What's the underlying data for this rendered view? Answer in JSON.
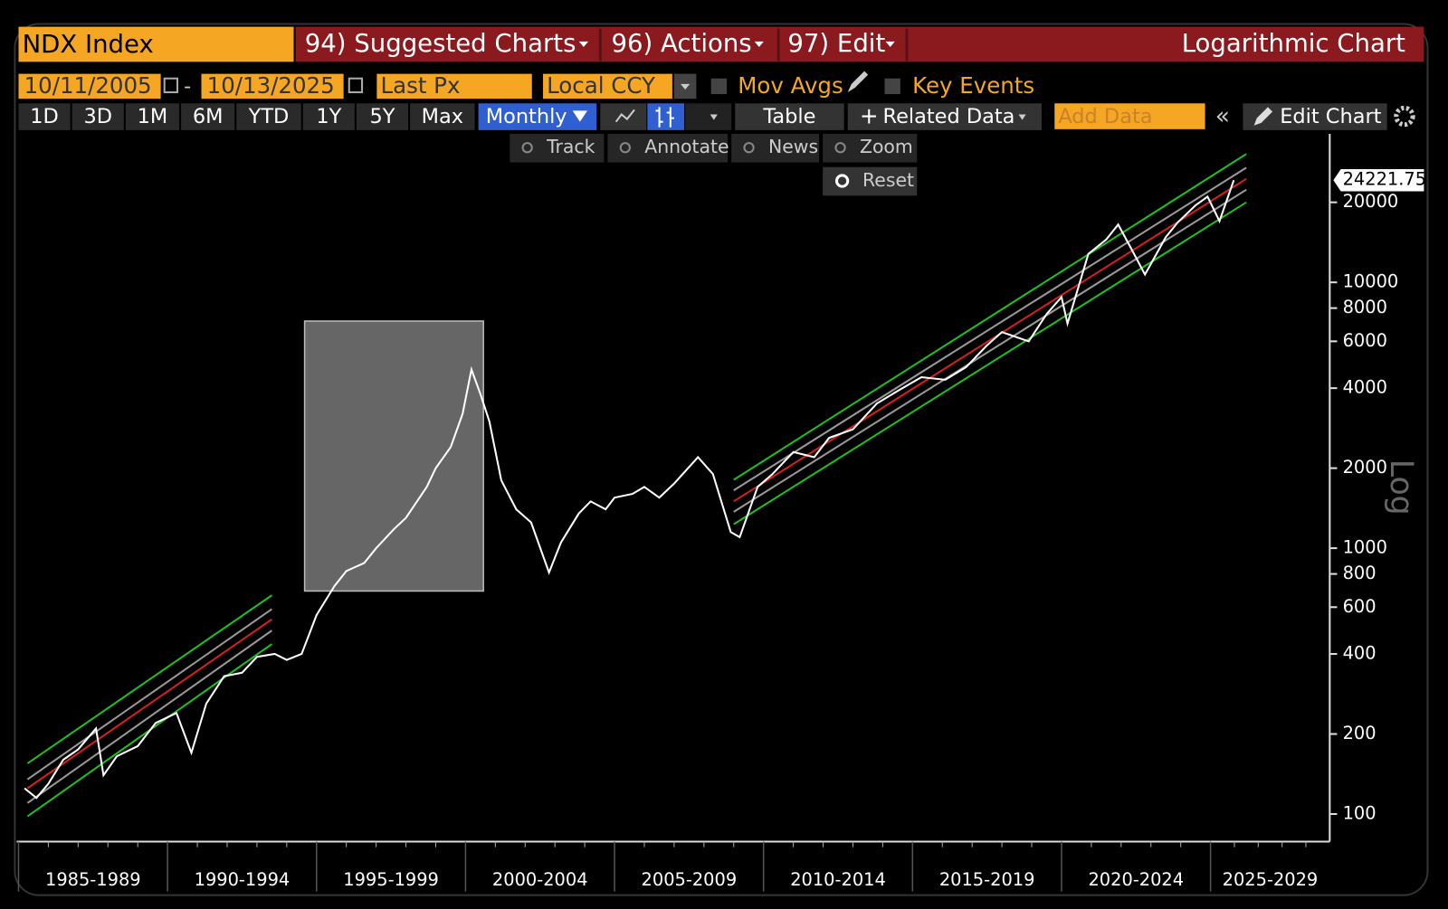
{
  "toolbar": {
    "ticker": "NDX Index",
    "menus": [
      "94) Suggested Charts",
      "96) Actions",
      "97) Edit"
    ],
    "chart_mode": "Logarithmic Chart",
    "start_date": "10/11/2005",
    "end_date": "10/13/2025",
    "field": "Last Px",
    "currency": "Local CCY",
    "mov_avgs": "Mov Avgs",
    "key_events": "Key Events",
    "ranges": [
      "1D",
      "3D",
      "1M",
      "6M",
      "YTD",
      "1Y",
      "5Y",
      "Max"
    ],
    "frequency": "Monthly",
    "table": "Table",
    "related_data": "Related Data",
    "add_data": "Add Data",
    "edit_chart": "Edit Chart",
    "tools": [
      "Track",
      "Annotate",
      "News",
      "Zoom"
    ],
    "reset": "Reset"
  },
  "chart_data": {
    "type": "line",
    "log_scale": true,
    "axis_label": "Log",
    "xlim": [
      1985,
      2029
    ],
    "xticks": [
      {
        "value": 1985,
        "label": "1985-1989"
      },
      {
        "value": 1990,
        "label": "1990-1994"
      },
      {
        "value": 1995,
        "label": "1995-1999"
      },
      {
        "value": 2000,
        "label": "2000-2004"
      },
      {
        "value": 2005,
        "label": "2005-2009"
      },
      {
        "value": 2010,
        "label": "2010-2014"
      },
      {
        "value": 2015,
        "label": "2015-2019"
      },
      {
        "value": 2020,
        "label": "2020-2024"
      },
      {
        "value": 2025,
        "label": "2025-2029"
      }
    ],
    "ylim": [
      80,
      36200
    ],
    "yticks": [
      100,
      200,
      400,
      600,
      800,
      1000,
      2000,
      4000,
      6000,
      8000,
      10000,
      20000
    ],
    "series": [
      {
        "name": "NDX Index",
        "color": "#ffffff",
        "x": [
          1985.2,
          1985.6,
          1986.0,
          1986.5,
          1987.0,
          1987.6,
          1987.85,
          1988.3,
          1989.0,
          1989.6,
          1990.3,
          1990.8,
          1991.3,
          1991.9,
          1992.5,
          1993.0,
          1993.6,
          1994.0,
          1994.5,
          1995.0,
          1995.6,
          1996.0,
          1996.6,
          1997.0,
          1997.6,
          1998.0,
          1998.7,
          1999.0,
          1999.5,
          1999.9,
          2000.2,
          2000.5,
          2000.8,
          2001.2,
          2001.7,
          2002.2,
          2002.8,
          2003.2,
          2003.8,
          2004.2,
          2004.7,
          2005.0,
          2005.6,
          2006.0,
          2006.5,
          2007.0,
          2007.8,
          2008.3,
          2008.9,
          2009.2,
          2009.8,
          2010.3,
          2011.0,
          2011.7,
          2012.2,
          2013.0,
          2013.8,
          2014.5,
          2015.3,
          2016.1,
          2016.8,
          2017.5,
          2018.0,
          2018.9,
          2019.5,
          2020.0,
          2020.2,
          2020.9,
          2021.5,
          2021.9,
          2022.4,
          2022.8,
          2023.5,
          2023.9,
          2024.5,
          2024.9,
          2025.3,
          2025.78
        ],
        "values": [
          125,
          115,
          130,
          160,
          175,
          210,
          140,
          165,
          180,
          220,
          240,
          170,
          260,
          330,
          340,
          390,
          400,
          380,
          400,
          560,
          720,
          820,
          880,
          1000,
          1180,
          1300,
          1700,
          2000,
          2400,
          3200,
          4700,
          3800,
          3000,
          1800,
          1400,
          1250,
          810,
          1050,
          1350,
          1500,
          1400,
          1550,
          1600,
          1700,
          1550,
          1750,
          2200,
          1900,
          1150,
          1100,
          1700,
          1900,
          2300,
          2200,
          2600,
          2800,
          3500,
          3900,
          4400,
          4300,
          4800,
          5800,
          6500,
          6000,
          7600,
          8800,
          7000,
          12800,
          14500,
          16500,
          13000,
          10700,
          14800,
          16800,
          19500,
          21000,
          17000,
          24221.75
        ]
      }
    ],
    "channels": [
      {
        "color": "#1fbf1f",
        "x": [
          1985.3,
          1993.5
        ],
        "values": [
          155,
          665
        ]
      },
      {
        "color": "#999999",
        "x": [
          1985.3,
          1993.5
        ],
        "values": [
          135,
          590
        ]
      },
      {
        "color": "#d42020",
        "x": [
          1985.3,
          1993.5
        ],
        "values": [
          125,
          540
        ]
      },
      {
        "color": "#999999",
        "x": [
          1985.3,
          1993.5
        ],
        "values": [
          110,
          490
        ]
      },
      {
        "color": "#1fbf1f",
        "x": [
          1985.3,
          1993.5
        ],
        "values": [
          98,
          436
        ]
      },
      {
        "color": "#1fbf1f",
        "x": [
          2009.0,
          2026.2
        ],
        "values": [
          1808,
          30400
        ]
      },
      {
        "color": "#999999",
        "x": [
          2009.0,
          2026.2
        ],
        "values": [
          1650,
          27000
        ]
      },
      {
        "color": "#d42020",
        "x": [
          2009.0,
          2026.2
        ],
        "values": [
          1500,
          24500
        ]
      },
      {
        "color": "#999999",
        "x": [
          2009.0,
          2026.2
        ],
        "values": [
          1370,
          22300
        ]
      },
      {
        "color": "#1fbf1f",
        "x": [
          2009.0,
          2026.2
        ],
        "values": [
          1230,
          20000
        ]
      }
    ],
    "highlight": {
      "x": [
        1994.6,
        2000.6
      ],
      "y": [
        690,
        7150
      ]
    },
    "last_value_label": "24221.75"
  }
}
